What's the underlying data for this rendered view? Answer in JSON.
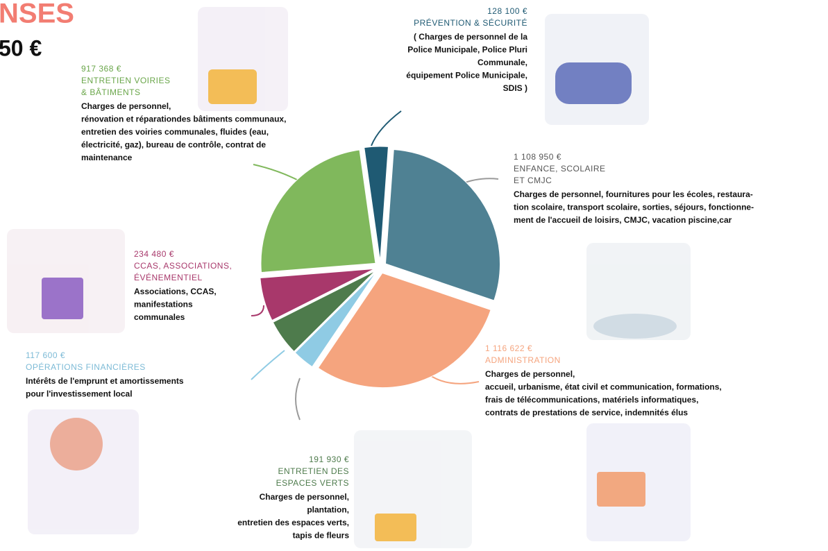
{
  "chart_data": {
    "type": "pie",
    "title": "NSES",
    "subtitle": "50 €",
    "categories": [
      "PRÉVENTION & SÉCURITÉ",
      "ENFANCE, SCOLAIRE\nET CMJC",
      "ADMINISTRATION",
      "OPÉRATIONS FINANCIÈRES",
      "ENTRETIEN DES\nESPACES VERTS",
      "CCAS, ASSOCIATIONS,\nÉVÉNEMENTIEL",
      "ENTRETIEN VOIRIES\n& BÂTIMENTS"
    ],
    "values": [
      128100,
      1108950,
      1116622,
      117600,
      191930,
      234480,
      917368
    ],
    "value_labels": [
      "128 100 €",
      "1 108 950 €",
      "1 116 622 €",
      "117 600 €",
      "191 930 €",
      "234 480 €",
      "917 368 €"
    ],
    "colors": [
      "#1f5a73",
      "#4f8193",
      "#f5a47e",
      "#8fcbe4",
      "#4e7b4c",
      "#a8386b",
      "#80b85c"
    ],
    "descriptions": [
      [
        "( Charges de personnel de la",
        "Police Municipale, Police Pluri",
        "Communale,",
        "équipement Police Municipale,",
        "SDIS )"
      ],
      [
        "Charges de personnel, fournitures pour les écoles, restaura-",
        "tion scolaire, transport scolaire, sorties, séjours, fonctionne-",
        "ment de l'accueil de loisirs, CMJC, vacation piscine,car"
      ],
      [
        "Charges de personnel,",
        "accueil, urbanisme, état civil et communication, formations,",
        "frais de télécommunications, matériels informatiques,",
        "contrats de prestations de service, indemnités élus"
      ],
      [
        "Intérêts de l'emprunt et amortissements",
        "pour l'investissement local"
      ],
      [
        "Charges de personnel,",
        "plantation,",
        "entretien des espaces verts,",
        "tapis de fleurs"
      ],
      [
        "Associations, CCAS,",
        "manifestations",
        "communales"
      ],
      [
        "Charges de personnel,",
        "rénovation et réparationdes bâtiments communaux,",
        "entretien des voiries communales, fluides (eau,",
        "électricité, gaz), bureau de contrôle, contrat de",
        "maintenance"
      ]
    ]
  }
}
